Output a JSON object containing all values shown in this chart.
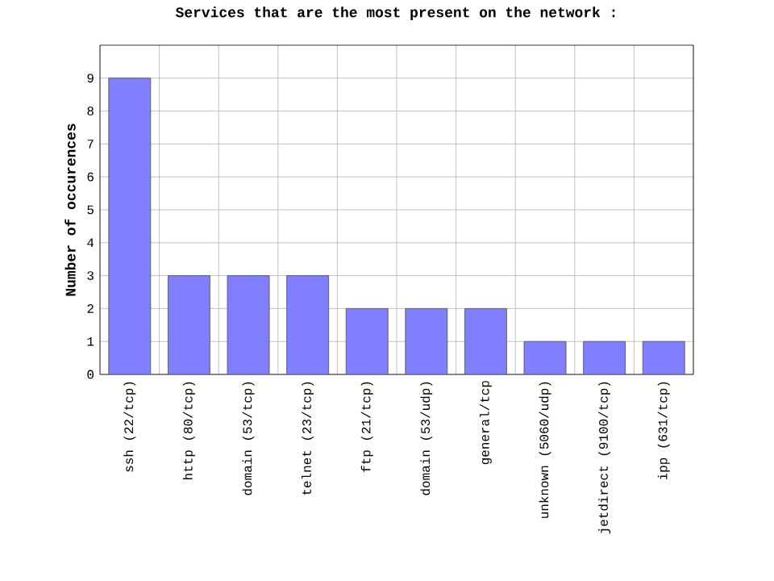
{
  "chart_data": {
    "type": "bar",
    "title": "Services that are the most present on the network :",
    "ylabel": "Number of occurences",
    "categories": [
      "ssh (22/tcp)",
      "http (80/tcp)",
      "domain (53/tcp)",
      "telnet (23/tcp)",
      "ftp (21/tcp)",
      "domain (53/udp)",
      "general/tcp",
      "unknown (5060/udp)",
      "jetdirect (9100/tcp)",
      "ipp (631/tcp)"
    ],
    "values": [
      9,
      3,
      3,
      3,
      2,
      2,
      2,
      1,
      1,
      1
    ],
    "color": "#7f7fff",
    "ylim": [
      0,
      10
    ],
    "yticks": [
      0,
      1,
      2,
      3,
      4,
      5,
      6,
      7,
      8,
      9
    ],
    "grid": true
  }
}
